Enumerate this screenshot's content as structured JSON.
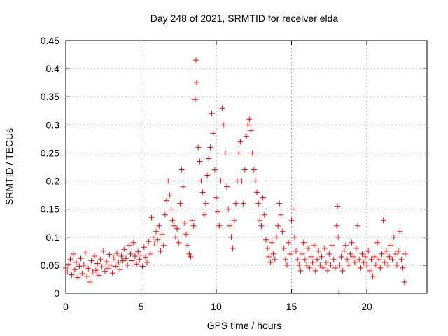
{
  "chart_data": {
    "type": "scatter",
    "title": "Day 248 of 2021, SRMTID for receiver elda",
    "xlabel": "GPS time / hours",
    "ylabel": "SRMTID / TECUs",
    "xlim": [
      0,
      24
    ],
    "ylim": [
      0,
      0.45
    ],
    "xticks": [
      0,
      5,
      10,
      15,
      20
    ],
    "xtick_labels": [
      "0",
      "5",
      "10",
      "15",
      "20"
    ],
    "yticks": [
      0,
      0.05,
      0.1,
      0.15,
      0.2,
      0.25,
      0.3,
      0.35,
      0.4,
      0.45
    ],
    "ytick_labels": [
      "0",
      "0.05",
      "0.1",
      "0.15",
      "0.2",
      "0.25",
      "0.3",
      "0.35",
      "0.4",
      "0.45"
    ],
    "grid": true,
    "marker": "+",
    "color": "#ff0000",
    "series": [
      {
        "name": "SRMTID",
        "points": [
          [
            0.0,
            0.045
          ],
          [
            0.1,
            0.038
          ],
          [
            0.2,
            0.052
          ],
          [
            0.3,
            0.061
          ],
          [
            0.4,
            0.033
          ],
          [
            0.5,
            0.07
          ],
          [
            0.6,
            0.042
          ],
          [
            0.7,
            0.055
          ],
          [
            0.8,
            0.028
          ],
          [
            0.9,
            0.048
          ],
          [
            1.0,
            0.062
          ],
          [
            1.1,
            0.035
          ],
          [
            1.2,
            0.05
          ],
          [
            1.3,
            0.072
          ],
          [
            1.4,
            0.03
          ],
          [
            1.5,
            0.044
          ],
          [
            1.6,
            0.02
          ],
          [
            1.7,
            0.058
          ],
          [
            1.8,
            0.038
          ],
          [
            1.9,
            0.066
          ],
          [
            2.0,
            0.041
          ],
          [
            2.1,
            0.053
          ],
          [
            2.2,
            0.032
          ],
          [
            2.3,
            0.06
          ],
          [
            2.4,
            0.047
          ],
          [
            2.5,
            0.075
          ],
          [
            2.6,
            0.039
          ],
          [
            2.7,
            0.056
          ],
          [
            2.8,
            0.044
          ],
          [
            2.9,
            0.069
          ],
          [
            3.0,
            0.05
          ],
          [
            3.1,
            0.036
          ],
          [
            3.2,
            0.063
          ],
          [
            3.3,
            0.048
          ],
          [
            3.4,
            0.071
          ],
          [
            3.5,
            0.055
          ],
          [
            3.6,
            0.042
          ],
          [
            3.7,
            0.066
          ],
          [
            3.8,
            0.058
          ],
          [
            3.9,
            0.078
          ],
          [
            4.0,
            0.062
          ],
          [
            4.1,
            0.05
          ],
          [
            4.2,
            0.085
          ],
          [
            4.3,
            0.07
          ],
          [
            4.4,
            0.058
          ],
          [
            4.5,
            0.09
          ],
          [
            4.6,
            0.066
          ],
          [
            4.7,
            0.052
          ],
          [
            4.8,
            0.074
          ],
          [
            4.9,
            0.06
          ],
          [
            5.0,
            0.068
          ],
          [
            5.1,
            0.048
          ],
          [
            5.2,
            0.082
          ],
          [
            5.3,
            0.064
          ],
          [
            5.4,
            0.055
          ],
          [
            5.5,
            0.092
          ],
          [
            5.6,
            0.07
          ],
          [
            5.7,
            0.135
          ],
          [
            5.8,
            0.1
          ],
          [
            5.9,
            0.088
          ],
          [
            6.0,
            0.11
          ],
          [
            6.1,
            0.095
          ],
          [
            6.2,
            0.12
          ],
          [
            6.3,
            0.075
          ],
          [
            6.4,
            0.105
          ],
          [
            6.5,
            0.085
          ],
          [
            6.6,
            0.14
          ],
          [
            6.7,
            0.165
          ],
          [
            6.8,
            0.2
          ],
          [
            6.9,
            0.175
          ],
          [
            7.0,
            0.15
          ],
          [
            7.1,
            0.13
          ],
          [
            7.2,
            0.12
          ],
          [
            7.3,
            0.1
          ],
          [
            7.4,
            0.115
          ],
          [
            7.5,
            0.09
          ],
          [
            7.6,
            0.16
          ],
          [
            7.7,
            0.22
          ],
          [
            7.8,
            0.19
          ],
          [
            7.9,
            0.125
          ],
          [
            8.0,
            0.105
          ],
          [
            8.1,
            0.085
          ],
          [
            8.2,
            0.07
          ],
          [
            8.3,
            0.065
          ],
          [
            8.4,
            0.13
          ],
          [
            8.5,
            0.12
          ],
          [
            8.6,
            0.345
          ],
          [
            8.65,
            0.415
          ],
          [
            8.7,
            0.375
          ],
          [
            8.8,
            0.26
          ],
          [
            8.9,
            0.235
          ],
          [
            9.0,
            0.2
          ],
          [
            9.1,
            0.18
          ],
          [
            9.2,
            0.14
          ],
          [
            9.3,
            0.16
          ],
          [
            9.4,
            0.21
          ],
          [
            9.5,
            0.24
          ],
          [
            9.6,
            0.26
          ],
          [
            9.7,
            0.32
          ],
          [
            9.8,
            0.285
          ],
          [
            9.9,
            0.22
          ],
          [
            10.0,
            0.17
          ],
          [
            10.1,
            0.145
          ],
          [
            10.2,
            0.12
          ],
          [
            10.3,
            0.2
          ],
          [
            10.4,
            0.33
          ],
          [
            10.5,
            0.3
          ],
          [
            10.6,
            0.25
          ],
          [
            10.7,
            0.19
          ],
          [
            10.8,
            0.15
          ],
          [
            10.9,
            0.12
          ],
          [
            11.0,
            0.1
          ],
          [
            11.1,
            0.08
          ],
          [
            11.2,
            0.13
          ],
          [
            11.3,
            0.16
          ],
          [
            11.4,
            0.2
          ],
          [
            11.5,
            0.25
          ],
          [
            11.6,
            0.27
          ],
          [
            11.7,
            0.2
          ],
          [
            11.8,
            0.16
          ],
          [
            11.9,
            0.22
          ],
          [
            12.0,
            0.28
          ],
          [
            12.1,
            0.3
          ],
          [
            12.2,
            0.31
          ],
          [
            12.3,
            0.29
          ],
          [
            12.4,
            0.25
          ],
          [
            12.5,
            0.22
          ],
          [
            12.6,
            0.2
          ],
          [
            12.7,
            0.18
          ],
          [
            12.8,
            0.16
          ],
          [
            12.9,
            0.13
          ],
          [
            13.0,
            0.12
          ],
          [
            13.1,
            0.17
          ],
          [
            13.2,
            0.14
          ],
          [
            13.3,
            0.095
          ],
          [
            13.4,
            0.08
          ],
          [
            13.5,
            0.065
          ],
          [
            13.6,
            0.055
          ],
          [
            13.7,
            0.09
          ],
          [
            13.8,
            0.07
          ],
          [
            13.9,
            0.06
          ],
          [
            14.0,
            0.1
          ],
          [
            14.1,
            0.12
          ],
          [
            14.2,
            0.16
          ],
          [
            14.3,
            0.14
          ],
          [
            14.4,
            0.11
          ],
          [
            14.5,
            0.08
          ],
          [
            14.6,
            0.06
          ],
          [
            14.7,
            0.05
          ],
          [
            14.8,
            0.09
          ],
          [
            14.9,
            0.07
          ],
          [
            15.0,
            0.13
          ],
          [
            15.1,
            0.15
          ],
          [
            15.2,
            0.1
          ],
          [
            15.3,
            0.075
          ],
          [
            15.4,
            0.06
          ],
          [
            15.5,
            0.05
          ],
          [
            15.6,
            0.04
          ],
          [
            15.7,
            0.07
          ],
          [
            15.8,
            0.09
          ],
          [
            15.9,
            0.06
          ],
          [
            16.0,
            0.05
          ],
          [
            16.1,
            0.08
          ],
          [
            16.2,
            0.045
          ],
          [
            16.3,
            0.065
          ],
          [
            16.4,
            0.055
          ],
          [
            16.5,
            0.085
          ],
          [
            16.6,
            0.04
          ],
          [
            16.7,
            0.06
          ],
          [
            16.8,
            0.075
          ],
          [
            16.9,
            0.05
          ],
          [
            17.0,
            0.065
          ],
          [
            17.1,
            0.045
          ],
          [
            17.2,
            0.08
          ],
          [
            17.3,
            0.055
          ],
          [
            17.4,
            0.04
          ],
          [
            17.5,
            0.07
          ],
          [
            17.6,
            0.05
          ],
          [
            17.7,
            0.085
          ],
          [
            17.8,
            0.06
          ],
          [
            17.9,
            0.045
          ],
          [
            18.0,
            0.12
          ],
          [
            18.05,
            0.155
          ],
          [
            18.1,
            0.1
          ],
          [
            18.15,
            0.0
          ],
          [
            18.2,
            0.05
          ],
          [
            18.3,
            0.065
          ],
          [
            18.4,
            0.04
          ],
          [
            18.5,
            0.075
          ],
          [
            18.6,
            0.085
          ],
          [
            18.7,
            0.06
          ],
          [
            18.8,
            0.05
          ],
          [
            18.9,
            0.07
          ],
          [
            19.0,
            0.09
          ],
          [
            19.1,
            0.065
          ],
          [
            19.2,
            0.055
          ],
          [
            19.3,
            0.08
          ],
          [
            19.4,
            0.12
          ],
          [
            19.5,
            0.06
          ],
          [
            19.6,
            0.045
          ],
          [
            19.7,
            0.07
          ],
          [
            19.8,
            0.055
          ],
          [
            19.9,
            0.065
          ],
          [
            20.0,
            0.05
          ],
          [
            20.1,
            0.075
          ],
          [
            20.2,
            0.04
          ],
          [
            20.3,
            0.06
          ],
          [
            20.4,
            0.03
          ],
          [
            20.5,
            0.065
          ],
          [
            20.6,
            0.05
          ],
          [
            20.7,
            0.09
          ],
          [
            20.8,
            0.06
          ],
          [
            20.9,
            0.045
          ],
          [
            21.0,
            0.07
          ],
          [
            21.1,
            0.13
          ],
          [
            21.2,
            0.055
          ],
          [
            21.3,
            0.075
          ],
          [
            21.4,
            0.05
          ],
          [
            21.5,
            0.065
          ],
          [
            21.6,
            0.085
          ],
          [
            21.7,
            0.06
          ],
          [
            21.8,
            0.1
          ],
          [
            21.9,
            0.07
          ],
          [
            22.0,
            0.05
          ],
          [
            22.1,
            0.075
          ],
          [
            22.2,
            0.11
          ],
          [
            22.3,
            0.06
          ],
          [
            22.4,
            0.045
          ],
          [
            22.5,
            0.02
          ],
          [
            22.55,
            0.07
          ]
        ]
      }
    ]
  }
}
